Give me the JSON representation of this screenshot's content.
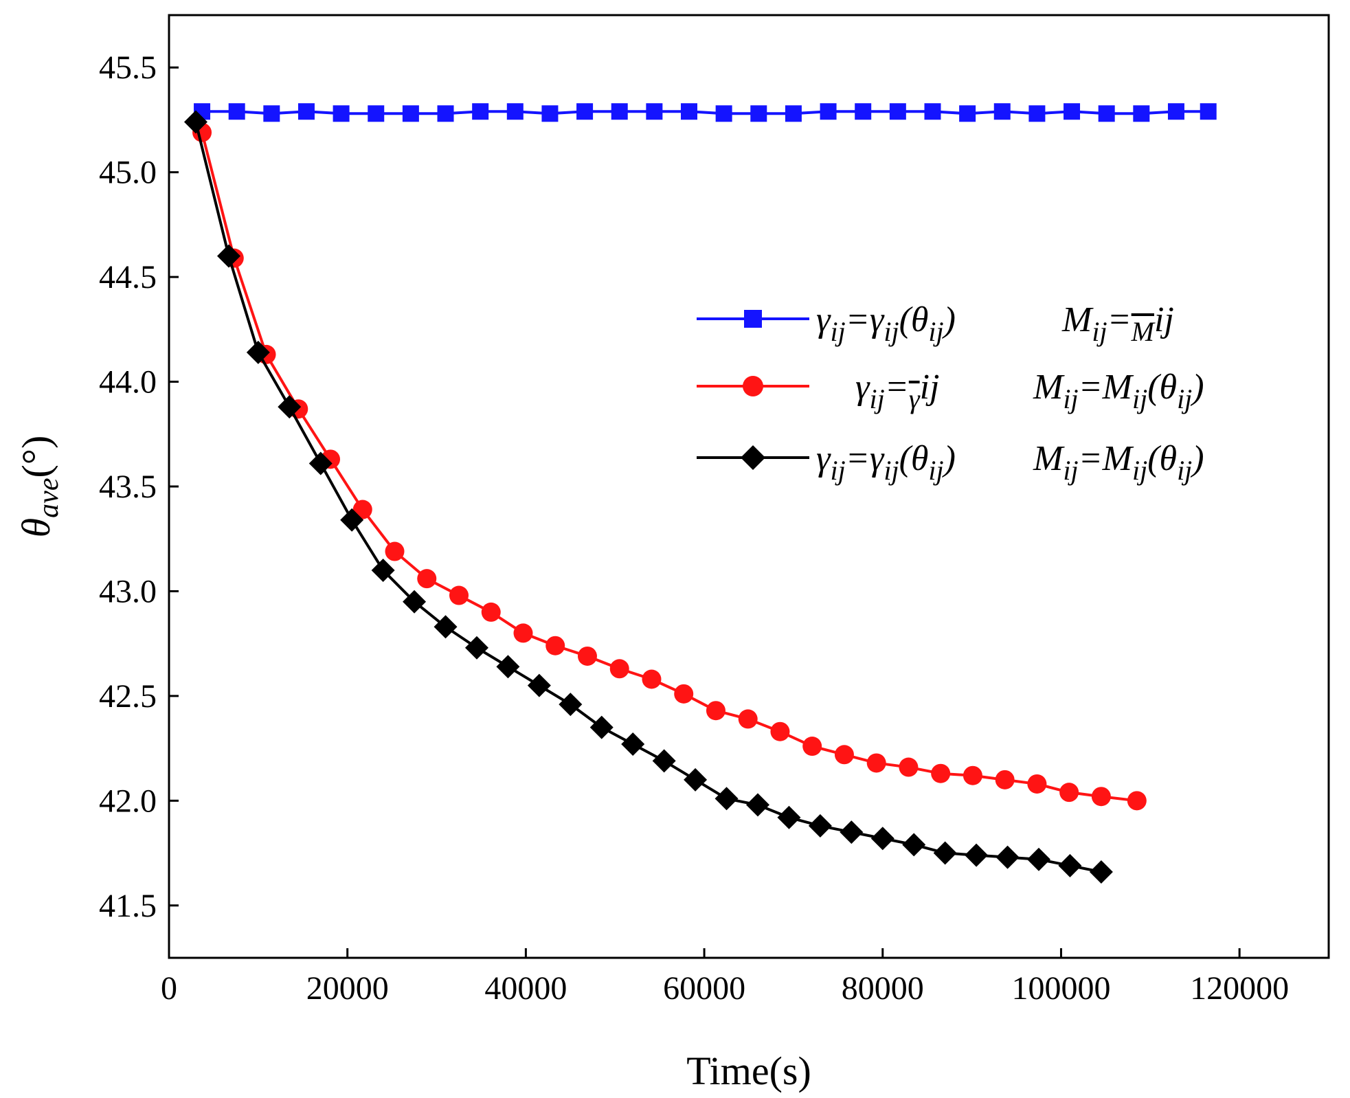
{
  "chart_data": {
    "type": "line",
    "title": "",
    "xlabel": "Time(s)",
    "ylabel_symbol": "θ",
    "ylabel_subscript": "ave",
    "ylabel_unit": "(°)",
    "xlim": [
      0,
      130000
    ],
    "ylim": [
      41.25,
      45.75
    ],
    "x_ticks": [
      0,
      20000,
      40000,
      60000,
      80000,
      100000,
      120000
    ],
    "x_tick_labels": [
      "0",
      "20000",
      "40000",
      "60000",
      "80000",
      "100000",
      "120000"
    ],
    "y_ticks": [
      41.5,
      42.0,
      42.5,
      43.0,
      43.5,
      44.0,
      44.5,
      45.0,
      45.5
    ],
    "y_tick_labels": [
      "41.5",
      "42.0",
      "42.5",
      "43.0",
      "43.5",
      "44.0",
      "44.5",
      "45.0",
      "45.5"
    ],
    "grid": false,
    "legend_position": "center-right",
    "series": [
      {
        "name": "γij=γij(θij)  Mij=M̄ij",
        "color": "#1414ff",
        "marker": "square",
        "legend_gamma": [
          "γ",
          "ij",
          "=γ",
          "ij",
          "(θ",
          "ij",
          ")"
        ],
        "legend_m": [
          "M",
          "ij",
          "=",
          "M",
          "ij"
        ],
        "x": [
          3700,
          7600,
          11500,
          15400,
          19300,
          23200,
          27100,
          31000,
          34900,
          38800,
          42700,
          46600,
          50500,
          54400,
          58300,
          62200,
          66100,
          70000,
          73900,
          77800,
          81700,
          85600,
          89500,
          93400,
          97300,
          101200,
          105100,
          109000,
          112900,
          116500
        ],
        "y": [
          45.29,
          45.29,
          45.28,
          45.29,
          45.28,
          45.28,
          45.28,
          45.28,
          45.29,
          45.29,
          45.28,
          45.29,
          45.29,
          45.29,
          45.29,
          45.28,
          45.28,
          45.28,
          45.29,
          45.29,
          45.29,
          45.29,
          45.28,
          45.29,
          45.28,
          45.29,
          45.28,
          45.28,
          45.29,
          45.29
        ]
      },
      {
        "name": "γij=γ̄ij  Mij=Mij(θij)",
        "color": "#ff1414",
        "marker": "circle",
        "legend_gamma": [
          "γ",
          "ij",
          "=",
          "γ",
          "ij"
        ],
        "legend_m": [
          "M",
          "ij",
          "=M",
          "ij",
          "(θ",
          "ij",
          ")"
        ],
        "x": [
          3700,
          7300,
          10900,
          14500,
          18100,
          21700,
          25300,
          28900,
          32500,
          36100,
          39700,
          43300,
          46900,
          50500,
          54100,
          57700,
          61300,
          64900,
          68500,
          72100,
          75700,
          79300,
          82900,
          86500,
          90100,
          93700,
          97300,
          100900,
          104500,
          108500
        ],
        "y": [
          45.19,
          44.59,
          44.13,
          43.87,
          43.63,
          43.39,
          43.19,
          43.06,
          42.98,
          42.9,
          42.8,
          42.74,
          42.69,
          42.63,
          42.58,
          42.51,
          42.43,
          42.39,
          42.33,
          42.26,
          42.22,
          42.18,
          42.16,
          42.13,
          42.12,
          42.1,
          42.08,
          42.04,
          42.02,
          42.0
        ]
      },
      {
        "name": "γij=γij(θij)  Mij=Mij(θij)",
        "color": "#000000",
        "marker": "diamond",
        "legend_gamma": [
          "γ",
          "ij",
          "=γ",
          "ij",
          "(θ",
          "ij",
          ")"
        ],
        "legend_m": [
          "M",
          "ij",
          "=M",
          "ij",
          "(θ",
          "ij",
          ")"
        ],
        "x": [
          3000,
          6700,
          10000,
          13500,
          17000,
          20500,
          24000,
          27500,
          31000,
          34500,
          38000,
          41500,
          45000,
          48500,
          52000,
          55500,
          59000,
          62500,
          66000,
          69500,
          73000,
          76500,
          80000,
          83500,
          87000,
          90500,
          94000,
          97500,
          101000,
          104500
        ],
        "y": [
          45.24,
          44.6,
          44.14,
          43.88,
          43.61,
          43.34,
          43.1,
          42.95,
          42.83,
          42.73,
          42.64,
          42.55,
          42.46,
          42.35,
          42.27,
          42.19,
          42.1,
          42.01,
          41.98,
          41.92,
          41.88,
          41.85,
          41.82,
          41.79,
          41.75,
          41.74,
          41.73,
          41.72,
          41.69,
          41.66
        ]
      }
    ]
  }
}
